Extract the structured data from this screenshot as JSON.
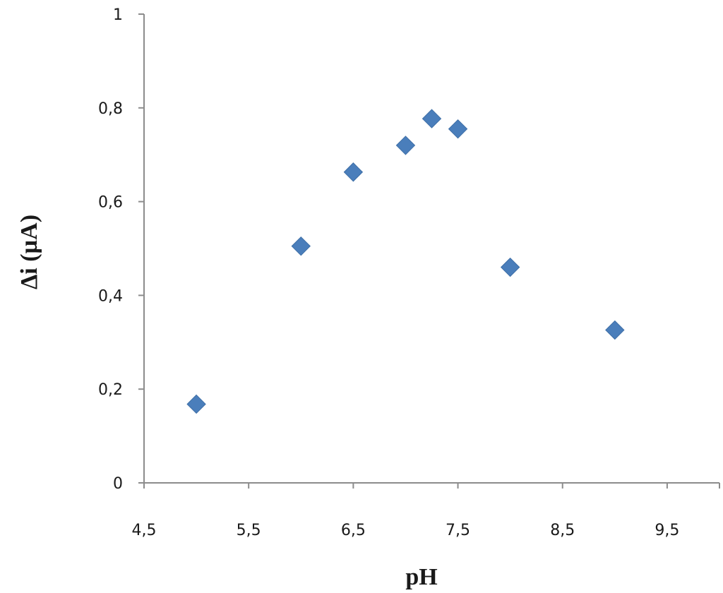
{
  "chart_data": {
    "type": "scatter",
    "title": "",
    "xlabel": "pH",
    "ylabel": "Δi (µA)",
    "xlim": [
      4.5,
      10
    ],
    "ylim": [
      0,
      1
    ],
    "x_ticks": [
      4.5,
      5.5,
      6.5,
      7.5,
      8.5,
      9.5
    ],
    "x_tick_labels": [
      "4,5",
      "5,5",
      "6,5",
      "7,5",
      "8,5",
      "9,5"
    ],
    "y_ticks": [
      0,
      0.2,
      0.4,
      0.6,
      0.8,
      1
    ],
    "y_tick_labels": [
      "0",
      "0,2",
      "0,4",
      "0,6",
      "0,8",
      "1"
    ],
    "grid": false,
    "legend": "none",
    "marker": "diamond",
    "marker_color": "#4a7ebb",
    "series": [
      {
        "x": [
          5,
          6,
          6.5,
          7,
          7.25,
          7.5,
          8,
          9
        ],
        "y": [
          0.168,
          0.505,
          0.663,
          0.72,
          0.777,
          0.755,
          0.46,
          0.326
        ]
      }
    ]
  }
}
